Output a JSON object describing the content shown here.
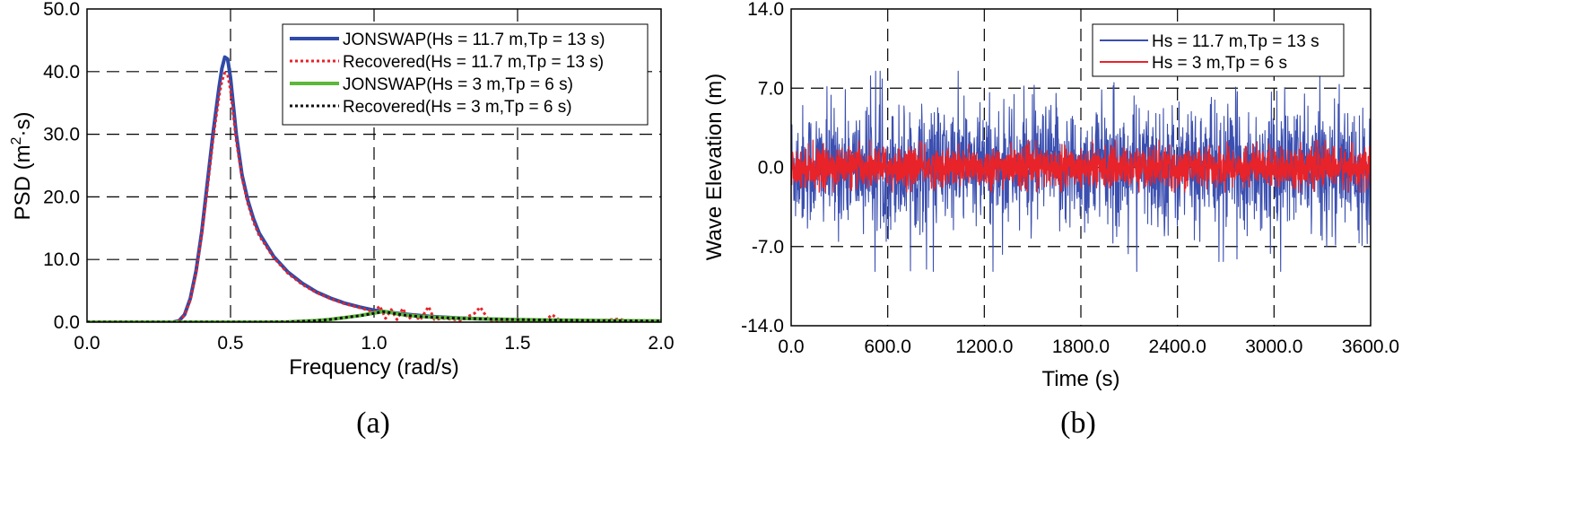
{
  "chart_data": [
    {
      "type": "line",
      "panel": "(a)",
      "xlabel": "Frequency (rad/s)",
      "ylabel_main": "PSD (m",
      "ylabel_sup": "2",
      "ylabel_tail": "·s)",
      "xlim": [
        0.0,
        2.0
      ],
      "ylim": [
        0.0,
        50.0
      ],
      "xticks": [
        0.0,
        0.5,
        1.0,
        1.5,
        2.0
      ],
      "xtick_labels": [
        "0.0",
        "0.5",
        "1.0",
        "1.5",
        "2.0"
      ],
      "yticks": [
        0.0,
        10.0,
        20.0,
        30.0,
        40.0,
        50.0
      ],
      "ytick_labels": [
        "0.0",
        "10.0",
        "20.0",
        "30.0",
        "40.0",
        "50.0"
      ],
      "grid": "dashed",
      "legend_position": "top-right",
      "series": [
        {
          "name": "JONSWAP(Hs = 11.7 m,Tp = 13 s)",
          "color": "#2f4aa8",
          "style": "solid",
          "x": [
            0.0,
            0.3,
            0.32,
            0.34,
            0.36,
            0.38,
            0.4,
            0.42,
            0.44,
            0.46,
            0.47,
            0.48,
            0.49,
            0.5,
            0.51,
            0.52,
            0.54,
            0.56,
            0.58,
            0.6,
            0.65,
            0.7,
            0.75,
            0.8,
            0.85,
            0.9,
            0.95,
            1.0,
            1.1,
            1.2,
            1.3,
            1.4,
            1.5,
            1.6,
            1.7,
            1.8,
            1.9,
            2.0
          ],
          "y": [
            0.0,
            0.0,
            0.2,
            1.2,
            3.8,
            8.2,
            14.5,
            22.5,
            30.5,
            37.5,
            40.5,
            42.3,
            42.0,
            39.0,
            34.5,
            30.0,
            23.5,
            19.5,
            16.5,
            14.2,
            10.5,
            8.0,
            6.2,
            4.8,
            3.8,
            3.0,
            2.4,
            1.9,
            1.3,
            0.9,
            0.65,
            0.48,
            0.36,
            0.27,
            0.21,
            0.16,
            0.13,
            0.1
          ]
        },
        {
          "name": "Recovered(Hs = 11.7 m,Tp = 13 s)",
          "color": "#e8232a",
          "style": "dotted",
          "x": [
            0.0,
            0.3,
            0.32,
            0.34,
            0.36,
            0.38,
            0.4,
            0.42,
            0.44,
            0.46,
            0.47,
            0.48,
            0.49,
            0.5,
            0.51,
            0.52,
            0.54,
            0.56,
            0.58,
            0.6,
            0.65,
            0.7,
            0.75,
            0.8,
            0.85,
            0.9,
            0.95,
            1.0,
            1.02,
            1.04,
            1.06,
            1.08,
            1.1,
            1.12,
            1.14,
            1.16,
            1.19,
            1.21,
            1.24,
            1.3,
            1.35,
            1.37,
            1.4,
            1.45,
            1.55,
            1.6,
            1.62,
            1.65,
            1.75,
            1.85,
            1.9,
            2.0
          ],
          "y": [
            0.0,
            0.0,
            0.2,
            1.1,
            3.5,
            7.8,
            14.0,
            21.5,
            29.5,
            36.0,
            38.5,
            39.8,
            39.5,
            37.0,
            33.0,
            29.0,
            23.0,
            19.0,
            16.0,
            13.8,
            10.3,
            7.8,
            6.0,
            4.7,
            3.7,
            2.9,
            2.3,
            1.6,
            2.6,
            0.6,
            2.0,
            0.4,
            2.2,
            0.5,
            1.2,
            0.3,
            2.5,
            0.4,
            0.6,
            0.3,
            1.4,
            2.4,
            0.3,
            0.2,
            0.1,
            0.4,
            1.2,
            0.2,
            0.1,
            0.5,
            0.1,
            0.1
          ]
        },
        {
          "name": "JONSWAP(Hs = 3 m,Tp = 6 s)",
          "color": "#5cb83a",
          "style": "solid",
          "x": [
            0.0,
            0.6,
            0.7,
            0.8,
            0.85,
            0.9,
            0.95,
            1.0,
            1.03,
            1.05,
            1.08,
            1.1,
            1.15,
            1.2,
            1.3,
            1.4,
            1.5,
            1.6,
            1.7,
            1.8,
            1.9,
            2.0
          ],
          "y": [
            0.0,
            0.0,
            0.05,
            0.25,
            0.45,
            0.75,
            1.05,
            1.45,
            1.7,
            1.6,
            1.35,
            1.2,
            0.95,
            0.8,
            0.62,
            0.5,
            0.42,
            0.35,
            0.3,
            0.26,
            0.22,
            0.2
          ]
        },
        {
          "name": "Recovered(Hs = 3 m,Tp = 6 s)",
          "color": "#111111",
          "style": "dotted",
          "x": [
            0.0,
            0.6,
            0.7,
            0.8,
            0.85,
            0.9,
            0.95,
            1.0,
            1.03,
            1.05,
            1.08,
            1.1,
            1.15,
            1.2,
            1.3,
            1.4,
            1.5,
            1.6,
            1.7,
            1.8,
            1.9,
            2.0
          ],
          "y": [
            0.0,
            0.0,
            0.05,
            0.24,
            0.44,
            0.74,
            1.02,
            1.4,
            1.65,
            1.55,
            1.3,
            1.15,
            0.92,
            0.78,
            0.6,
            0.48,
            0.4,
            0.34,
            0.29,
            0.25,
            0.21,
            0.19
          ]
        }
      ]
    },
    {
      "type": "line",
      "panel": "(b)",
      "xlabel": "Time (s)",
      "ylabel": "Wave Elevation (m)",
      "xlim": [
        0.0,
        3600.0
      ],
      "ylim": [
        -14.0,
        14.0
      ],
      "xticks": [
        0.0,
        600.0,
        1200.0,
        1800.0,
        2400.0,
        3000.0,
        3600.0
      ],
      "xtick_labels": [
        "0.0",
        "600.0",
        "1200.0",
        "1800.0",
        "2400.0",
        "3000.0",
        "3600.0"
      ],
      "yticks": [
        -14.0,
        -7.0,
        0.0,
        7.0,
        14.0
      ],
      "ytick_labels": [
        "-14.0",
        "-7.0",
        "0.0",
        "7.0",
        "14.0"
      ],
      "grid": "dashed",
      "legend_position": "top-right",
      "series": [
        {
          "name": "Hs = 11.7 m,Tp = 13 s",
          "color": "#3b4fb0",
          "style": "solid",
          "amplitude_typical": 3.0,
          "amplitude_max": 9.0,
          "min_observed": -9.2,
          "max_observed": 8.5
        },
        {
          "name": "Hs = 3 m,Tp = 6 s",
          "color": "#e8232a",
          "style": "solid",
          "amplitude_typical": 0.9,
          "amplitude_max": 2.3,
          "min_observed": -2.2,
          "max_observed": 2.4
        }
      ]
    }
  ],
  "captions": {
    "a": "(a)",
    "b": "(b)"
  }
}
